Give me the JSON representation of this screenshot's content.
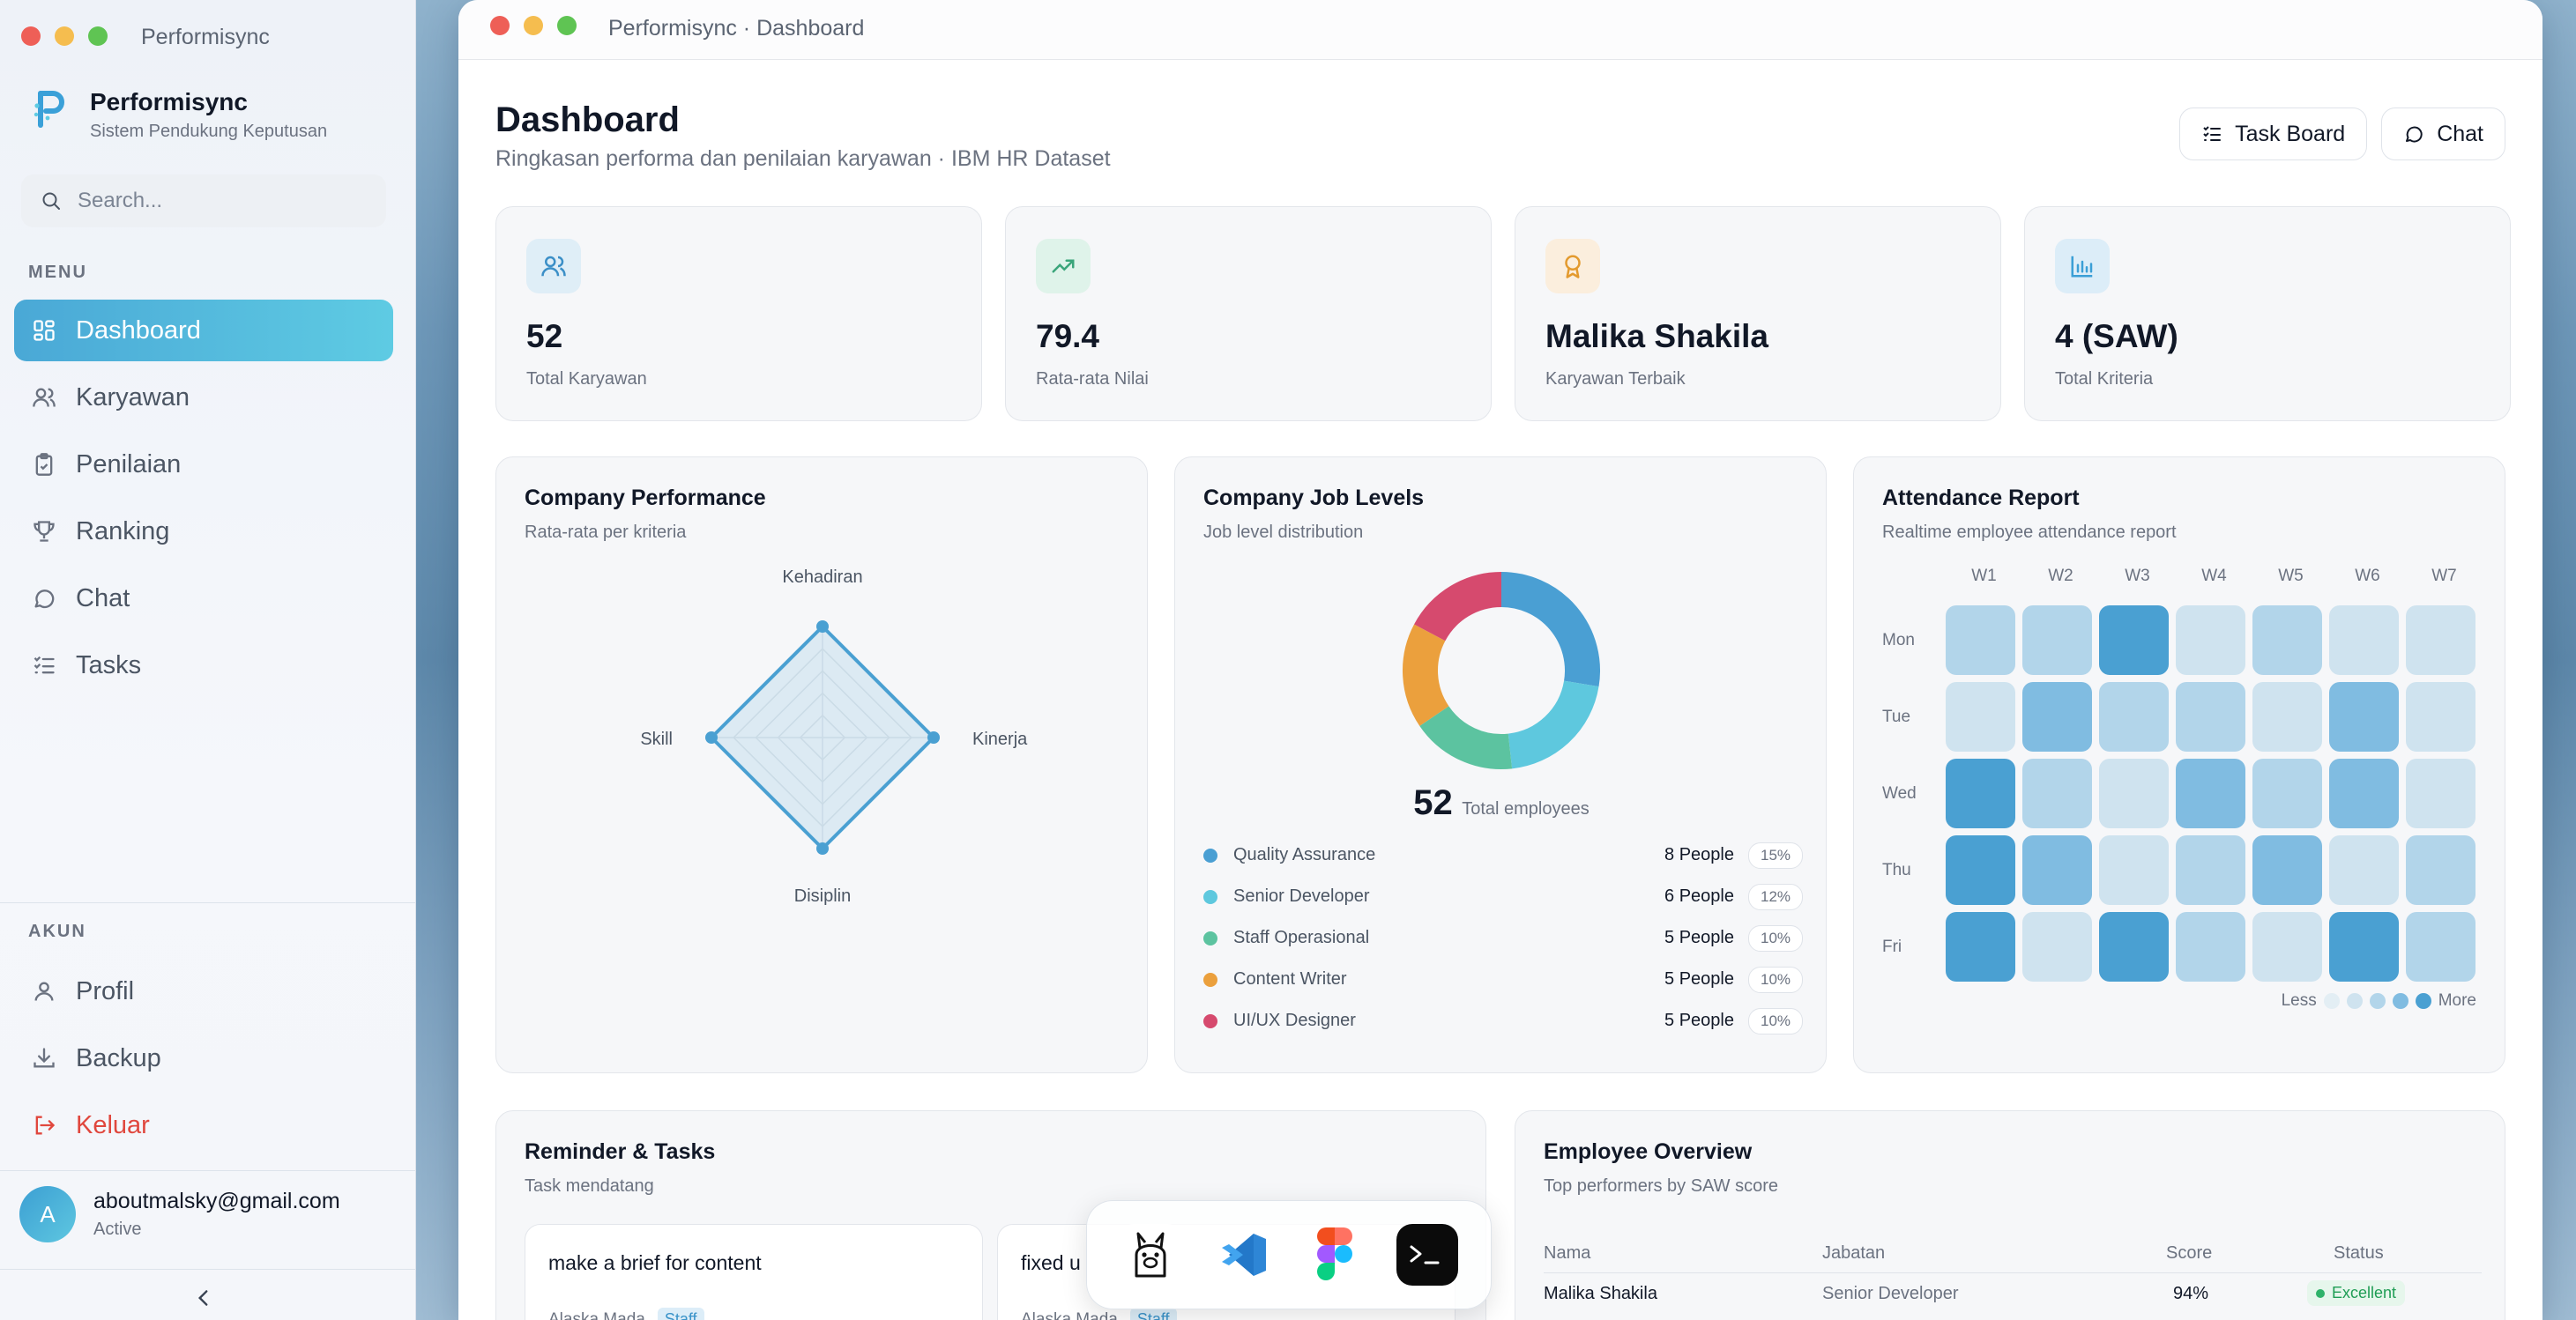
{
  "sidebar": {
    "app_title": "Performisync",
    "brand_name": "Performisync",
    "brand_subtitle": "Sistem Pendukung Keputusan",
    "search_placeholder": "Search...",
    "menu_label": "MENU",
    "menu_items": [
      {
        "label": "Dashboard",
        "icon": "grid-icon",
        "active": true
      },
      {
        "label": "Karyawan",
        "icon": "users-icon"
      },
      {
        "label": "Penilaian",
        "icon": "clipboard-icon"
      },
      {
        "label": "Ranking",
        "icon": "trophy-icon"
      },
      {
        "label": "Chat",
        "icon": "chat-icon"
      },
      {
        "label": "Tasks",
        "icon": "list-checks-icon"
      }
    ],
    "account_label": "AKUN",
    "account_items": [
      {
        "label": "Profil",
        "icon": "user-icon"
      },
      {
        "label": "Backup",
        "icon": "download-icon"
      },
      {
        "label": "Keluar",
        "icon": "logout-icon"
      }
    ],
    "user": {
      "initial": "A",
      "email": "aboutmalsky@gmail.com",
      "status": "Active"
    }
  },
  "window": {
    "title": "Performisync · Dashboard"
  },
  "header": {
    "title": "Dashboard",
    "subtitle": "Ringkasan performa dan penilaian karyawan · IBM HR Dataset",
    "task_board_label": "Task Board",
    "chat_label": "Chat"
  },
  "stats": [
    {
      "value": "52",
      "label": "Total Karyawan",
      "icon": "users-icon",
      "color": "#3b8fc7"
    },
    {
      "value": "79.4",
      "label": "Rata-rata Nilai",
      "icon": "trending-up-icon",
      "color": "#3aa57a"
    },
    {
      "value": "Malika Shakila",
      "label": "Karyawan Terbaik",
      "icon": "award-icon",
      "color": "#e39a2e"
    },
    {
      "value": "4 (SAW)",
      "label": "Total Kriteria",
      "icon": "bar-chart-icon",
      "color": "#3b9fd6"
    }
  ],
  "performance": {
    "title": "Company Performance",
    "subtitle": "Rata-rata per kriteria"
  },
  "job_levels": {
    "title": "Company Job Levels",
    "subtitle": "Job level distribution",
    "total": "52",
    "total_label": "Total employees",
    "items": [
      {
        "name": "Quality Assurance",
        "count": "8 People",
        "pct": "15%",
        "color": "#4a9fd3"
      },
      {
        "name": "Senior Developer",
        "count": "6 People",
        "pct": "12%",
        "color": "#5ec8de"
      },
      {
        "name": "Staff Operasional",
        "count": "5 People",
        "pct": "10%",
        "color": "#5cc3a0"
      },
      {
        "name": "Content Writer",
        "count": "5 People",
        "pct": "10%",
        "color": "#eba03d"
      },
      {
        "name": "UI/UX Designer",
        "count": "5 People",
        "pct": "10%",
        "color": "#d64a6e"
      }
    ]
  },
  "attendance": {
    "title": "Attendance Report",
    "subtitle": "Realtime employee attendance report",
    "weeks": [
      "W1",
      "W2",
      "W3",
      "W4",
      "W5",
      "W6",
      "W7"
    ],
    "days": [
      "Mon",
      "Tue",
      "Wed",
      "Thu",
      "Fri"
    ],
    "legend_less": "Less",
    "legend_more": "More"
  },
  "reminders": {
    "title": "Reminder & Tasks",
    "subtitle": "Task mendatang",
    "tasks": [
      {
        "title": "make a brief for content",
        "assignee": "Alaska Mada",
        "tag": "Staff"
      },
      {
        "title": "fixed u",
        "assignee": "Alaska Mada",
        "tag": "Staff"
      }
    ]
  },
  "overview": {
    "title": "Employee Overview",
    "subtitle": "Top performers by SAW score",
    "columns": [
      "Nama",
      "Jabatan",
      "Score",
      "Status"
    ],
    "rows": [
      {
        "name": "Malika Shakila",
        "position": "Senior Developer",
        "score": "94%",
        "status": "Excellent"
      }
    ]
  },
  "chart_data": [
    {
      "type": "radar",
      "title": "Company Performance",
      "categories": [
        "Kehadiran",
        "Kinerja",
        "Disiplin",
        "Skill"
      ],
      "values": [
        100,
        100,
        100,
        100
      ],
      "ylim": [
        0,
        100
      ],
      "grid": true
    },
    {
      "type": "pie",
      "title": "Company Job Levels",
      "categories": [
        "Quality Assurance",
        "Senior Developer",
        "Staff Operasional",
        "Content Writer",
        "UI/UX Designer"
      ],
      "values": [
        8,
        6,
        5,
        5,
        5
      ],
      "colors": [
        "#4a9fd3",
        "#5ec8de",
        "#5cc3a0",
        "#eba03d",
        "#d64a6e"
      ]
    },
    {
      "type": "heatmap",
      "title": "Attendance Report",
      "x": [
        "W1",
        "W2",
        "W3",
        "W4",
        "W5",
        "W6",
        "W7"
      ],
      "y": [
        "Mon",
        "Tue",
        "Wed",
        "Thu",
        "Fri"
      ],
      "values": [
        [
          2,
          2,
          4,
          1,
          2,
          1,
          1
        ],
        [
          1,
          3,
          2,
          2,
          1,
          3,
          1
        ],
        [
          4,
          2,
          1,
          3,
          2,
          3,
          1
        ],
        [
          4,
          3,
          1,
          2,
          3,
          1,
          2
        ],
        [
          4,
          1,
          4,
          2,
          1,
          4,
          2
        ]
      ],
      "scale": [
        "#e3eef4",
        "#cfe3ef",
        "#b2d5ea",
        "#80bce1",
        "#4aa0d2"
      ]
    }
  ]
}
